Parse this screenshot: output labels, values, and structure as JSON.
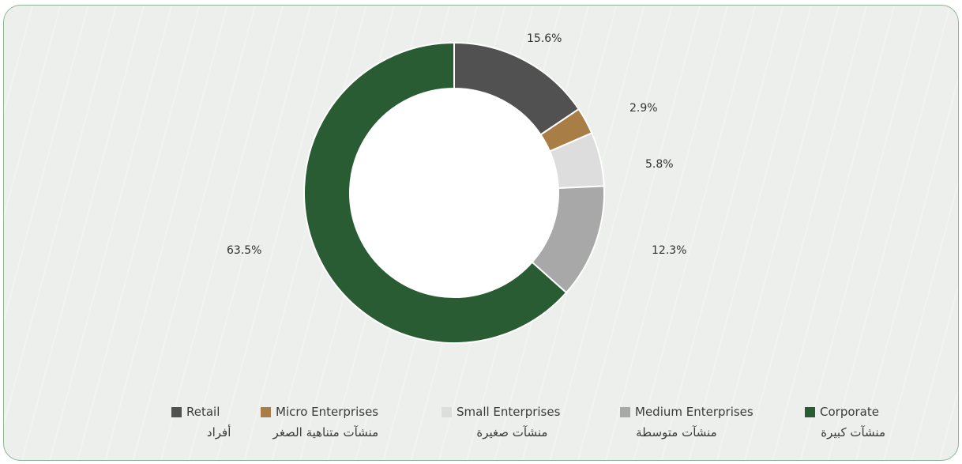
{
  "chart_data": {
    "type": "pie",
    "variant": "donut",
    "slices": [
      {
        "label": "Retail",
        "label_ar": "أفراد",
        "value": 15.6,
        "value_label": "15.6%",
        "color": "#515151"
      },
      {
        "label": "Micro Enterprises",
        "label_ar": "منشآت متناهية الصغر",
        "value": 2.9,
        "value_label": "2.9%",
        "color": "#a87e46"
      },
      {
        "label": "Small Enterprises",
        "label_ar": "منشآت صغيرة",
        "value": 5.8,
        "value_label": "5.8%",
        "color": "#dddddd"
      },
      {
        "label": "Medium Enterprises",
        "label_ar": "منشآت متوسطة",
        "value": 12.3,
        "value_label": "12.3%",
        "color": "#a8a8a8"
      },
      {
        "label": "Corporate",
        "label_ar": "منشآت كبيرة",
        "value": 63.5,
        "value_label": "63.5%",
        "color": "#2a5c33"
      }
    ],
    "start_angle": "12 o'clock",
    "direction": "clockwise",
    "legend_position": "bottom",
    "title": ""
  },
  "colors": {
    "card_background": "#ecefeb",
    "card_border": "#8fb596"
  }
}
